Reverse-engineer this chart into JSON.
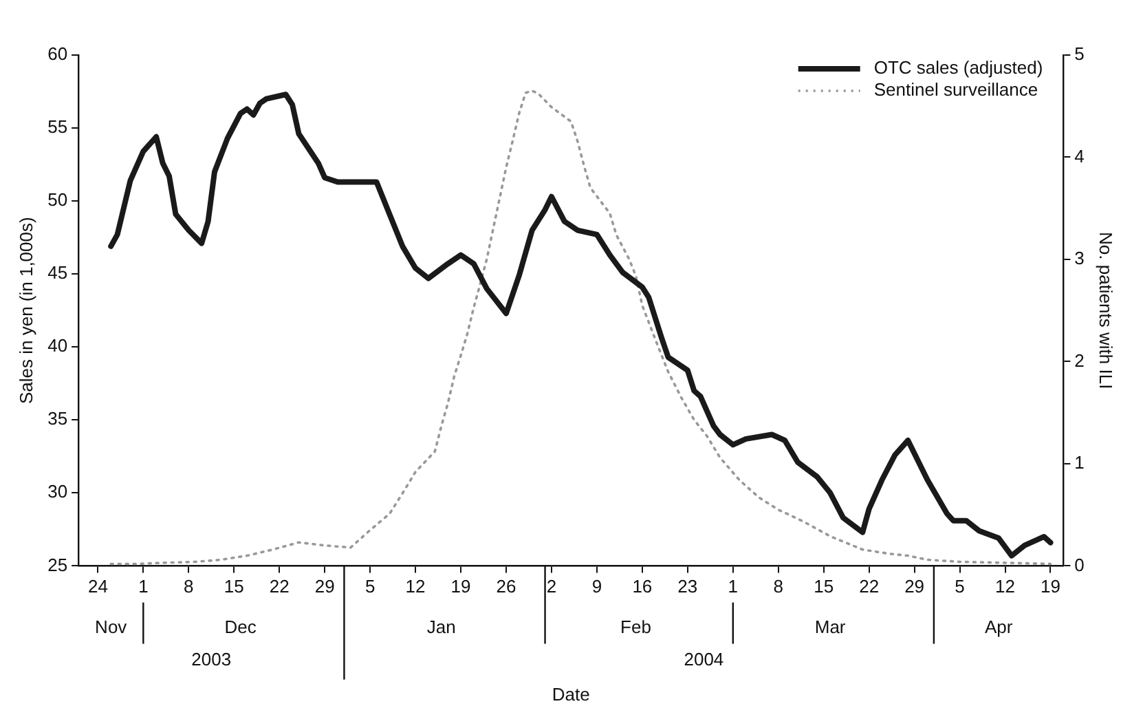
{
  "chart_data": {
    "type": "line",
    "xlabel": "Date",
    "ylabel": "Sales in yen (in 1,000s)",
    "y2label": "No. patients with ILI",
    "xlim": [
      "2003-11-21",
      "2004-04-21"
    ],
    "xticks": [
      {
        "value": "2003-11-24",
        "label": "24"
      },
      {
        "value": "2003-12-01",
        "label": "1"
      },
      {
        "value": "2003-12-08",
        "label": "8"
      },
      {
        "value": "2003-12-15",
        "label": "15"
      },
      {
        "value": "2003-12-22",
        "label": "22"
      },
      {
        "value": "2003-12-29",
        "label": "29"
      },
      {
        "value": "2004-01-05",
        "label": "5"
      },
      {
        "value": "2004-01-12",
        "label": "12"
      },
      {
        "value": "2004-01-19",
        "label": "19"
      },
      {
        "value": "2004-01-26",
        "label": "26"
      },
      {
        "value": "2004-02-02",
        "label": "2"
      },
      {
        "value": "2004-02-09",
        "label": "9"
      },
      {
        "value": "2004-02-16",
        "label": "16"
      },
      {
        "value": "2004-02-23",
        "label": "23"
      },
      {
        "value": "2004-03-01",
        "label": "1"
      },
      {
        "value": "2004-03-08",
        "label": "8"
      },
      {
        "value": "2004-03-15",
        "label": "15"
      },
      {
        "value": "2004-03-22",
        "label": "22"
      },
      {
        "value": "2004-03-29",
        "label": "29"
      },
      {
        "value": "2004-04-05",
        "label": "5"
      },
      {
        "value": "2004-04-12",
        "label": "12"
      },
      {
        "value": "2004-04-19",
        "label": "19"
      }
    ],
    "x2lim": [
      "2003-11-21",
      "2004-04-21"
    ],
    "x2ticks": [
      {
        "value": "2003-11-26",
        "label": "Nov"
      },
      {
        "value": "2003-12-16",
        "label": "Dec"
      },
      {
        "value": "2004-01-16",
        "label": "Jan"
      },
      {
        "value": "2004-02-15",
        "label": "Feb"
      },
      {
        "value": "2004-03-16",
        "label": "Mar"
      },
      {
        "value": "2004-04-11",
        "label": "Apr"
      }
    ],
    "annotations": [
      "2003",
      "2004"
    ],
    "ylim": [
      25,
      60
    ],
    "yticks": [
      25,
      30,
      35,
      40,
      45,
      50,
      55,
      60
    ],
    "y2lim": [
      0,
      5
    ],
    "y2ticks": [
      0,
      1,
      2,
      3,
      4,
      5
    ],
    "legend": "top right",
    "marker": "none",
    "series": [
      {
        "name": "OTC sales (adjusted)",
        "color": "#1a1a1a",
        "line_style": "solid",
        "axis": "y",
        "x": [
          "2003-11-26",
          "2003-11-27",
          "2003-11-29",
          "2003-12-01",
          "2003-12-03",
          "2003-12-04",
          "2003-12-05",
          "2003-12-06",
          "2003-12-08",
          "2003-12-10",
          "2003-12-11",
          "2003-12-12",
          "2003-12-14",
          "2003-12-16",
          "2003-12-17",
          "2003-12-18",
          "2003-12-19",
          "2003-12-20",
          "2003-12-23",
          "2003-12-24",
          "2003-12-25",
          "2003-12-28",
          "2003-12-29",
          "2003-12-31",
          "2004-01-06",
          "2004-01-08",
          "2004-01-10",
          "2004-01-12",
          "2004-01-14",
          "2004-01-17",
          "2004-01-19",
          "2004-01-21",
          "2004-01-23",
          "2004-01-26",
          "2004-01-28",
          "2004-01-30",
          "2004-02-01",
          "2004-02-02",
          "2004-02-04",
          "2004-02-06",
          "2004-02-09",
          "2004-02-11",
          "2004-02-13",
          "2004-02-16",
          "2004-02-17",
          "2004-02-19",
          "2004-02-20",
          "2004-02-23",
          "2004-02-24",
          "2004-02-25",
          "2004-02-27",
          "2004-02-28",
          "2004-03-01",
          "2004-03-03",
          "2004-03-07",
          "2004-03-09",
          "2004-03-11",
          "2004-03-14",
          "2004-03-16",
          "2004-03-18",
          "2004-03-21",
          "2004-03-22",
          "2004-03-24",
          "2004-03-26",
          "2004-03-28",
          "2004-03-31",
          "2004-04-03",
          "2004-04-04",
          "2004-04-06",
          "2004-04-08",
          "2004-04-11",
          "2004-04-13",
          "2004-04-15",
          "2004-04-18",
          "2004-04-19"
        ],
        "values": [
          46.9,
          47.7,
          51.4,
          53.4,
          54.4,
          52.6,
          51.7,
          49.1,
          48.0,
          47.1,
          48.6,
          52.0,
          54.3,
          56.0,
          56.3,
          55.9,
          56.7,
          57.0,
          57.3,
          56.6,
          54.6,
          52.6,
          51.6,
          51.3,
          51.3,
          49.1,
          46.9,
          45.4,
          44.7,
          45.7,
          46.3,
          45.7,
          44.0,
          42.3,
          44.9,
          48.0,
          49.4,
          50.3,
          48.6,
          48.0,
          47.7,
          46.3,
          45.1,
          44.1,
          43.4,
          40.6,
          39.3,
          38.4,
          37.0,
          36.6,
          34.6,
          34.0,
          33.3,
          33.7,
          34.0,
          33.6,
          32.1,
          31.1,
          30.0,
          28.3,
          27.3,
          28.9,
          30.9,
          32.6,
          33.6,
          30.9,
          28.6,
          28.1,
          28.1,
          27.4,
          26.9,
          25.7,
          26.4,
          27.0,
          26.6
        ]
      },
      {
        "name": "Sentinel surveillance",
        "color": "#999999",
        "line_style": "dotted",
        "axis": "y2",
        "x": [
          "2003-11-26",
          "2003-11-30",
          "2003-12-04",
          "2003-12-09",
          "2003-12-13",
          "2003-12-17",
          "2003-12-21",
          "2003-12-25",
          "2003-12-29",
          "2004-01-02",
          "2004-01-05",
          "2004-01-08",
          "2004-01-10",
          "2004-01-12",
          "2004-01-15",
          "2004-01-16",
          "2004-01-17",
          "2004-01-18",
          "2004-01-19",
          "2004-01-20",
          "2004-01-21",
          "2004-01-22",
          "2004-01-23",
          "2004-01-24",
          "2004-01-25",
          "2004-01-26",
          "2004-01-27",
          "2004-01-28",
          "2004-01-29",
          "2004-01-30",
          "2004-01-31",
          "2004-02-02",
          "2004-02-05",
          "2004-02-06",
          "2004-02-07",
          "2004-02-08",
          "2004-02-11",
          "2004-02-12",
          "2004-02-14",
          "2004-02-15",
          "2004-02-16",
          "2004-02-18",
          "2004-02-20",
          "2004-02-22",
          "2004-02-24",
          "2004-02-26",
          "2004-02-28",
          "2004-03-02",
          "2004-03-05",
          "2004-03-08",
          "2004-03-12",
          "2004-03-16",
          "2004-03-21",
          "2004-03-25",
          "2004-03-28",
          "2004-03-31",
          "2004-04-05",
          "2004-04-12",
          "2004-04-19"
        ],
        "values": [
          0.02,
          0.02,
          0.03,
          0.04,
          0.06,
          0.1,
          0.16,
          0.23,
          0.2,
          0.18,
          0.35,
          0.51,
          0.71,
          0.92,
          1.12,
          1.37,
          1.59,
          1.86,
          2.06,
          2.27,
          2.53,
          2.76,
          3.0,
          3.3,
          3.6,
          3.9,
          4.16,
          4.43,
          4.63,
          4.65,
          4.62,
          4.49,
          4.35,
          4.16,
          3.92,
          3.7,
          3.45,
          3.24,
          3.0,
          2.84,
          2.55,
          2.22,
          1.9,
          1.65,
          1.43,
          1.27,
          1.06,
          0.84,
          0.67,
          0.55,
          0.43,
          0.29,
          0.16,
          0.12,
          0.1,
          0.06,
          0.04,
          0.03,
          0.02
        ]
      }
    ]
  }
}
